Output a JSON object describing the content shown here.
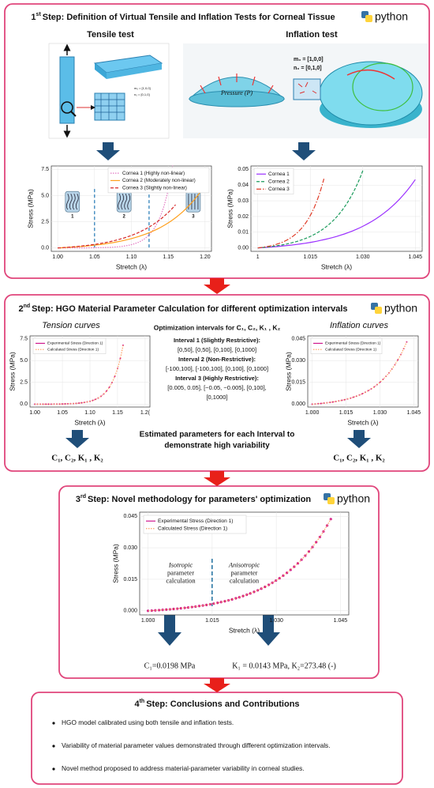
{
  "step1": {
    "num": "1",
    "sup": "st",
    "title": "Step: Definition of Virtual Tensile and Inflation Tests for Corneal Tissue",
    "logo_text": "python",
    "tensile_heading": "Tensile test",
    "inflation_heading": "Inflation test",
    "tensile_image_labels": [
      "m₀ = [1,0,0]",
      "n₀ = [0,1,0]"
    ],
    "inflation_image_labels": {
      "m0": "m₀ = [1,0,0]",
      "n0": "n₀ = [0,1,0]",
      "pressure": "Pressure (P)"
    },
    "tensile_chart": {
      "xlabel": "Stretch (λ)",
      "ylabel": "Stress (MPa)",
      "xticks": [
        "1.00",
        "1.05",
        "1.10",
        "1.15",
        "1.20"
      ],
      "yticks": [
        "0.0",
        "2.5",
        "5.0",
        "7.5"
      ],
      "fiber_labels": [
        "1",
        "2",
        "3"
      ],
      "series": [
        {
          "name": "Cornea 1 (Highly non-linear)",
          "color": "#e377c2",
          "dash": "1.5 1.5"
        },
        {
          "name": "Cornea 2 (Moderately non-linear)",
          "color": "#ff9f1c",
          "dash": ""
        },
        {
          "name": "Cornea 3 (Slightly non-linear)",
          "color": "#d62728",
          "dash": "4 2"
        }
      ]
    },
    "inflation_chart": {
      "xlabel": "Stretch (λ)",
      "ylabel": "Stress (MPa)",
      "xticks": [
        "1",
        "1.015",
        "1.030",
        "1.045"
      ],
      "yticks": [
        "0.00",
        "0.01",
        "0.02",
        "0.03",
        "0.04",
        "0.05"
      ],
      "series": [
        {
          "name": "Cornea 1",
          "color": "#9b30ff",
          "dash": ""
        },
        {
          "name": "Cornea 2",
          "color": "#1a9b5b",
          "dash": "4 2"
        },
        {
          "name": "Cornea 3",
          "color": "#e03c28",
          "dash": "6 2 1.5 2"
        }
      ]
    }
  },
  "step2": {
    "num": "2",
    "sup": "nd",
    "title": "Step: HGO Material Parameter Calculation for different optimization intervals",
    "logo_text": "python",
    "tension_heading": "Tension curves",
    "inflation_heading": "Inflation curves",
    "intervals_heading": "Optimization intervals for C₁, C₂, K₁ , K₂",
    "intervals": [
      {
        "name": "Interval 1 (Slightly Restrictive):",
        "lines": [
          "[0,50], [0,50], [0,100], [0,1000]"
        ]
      },
      {
        "name": "Interval 2 (Non-Restrictive):",
        "lines": [
          "[-100,100], [-100,100], [0,100], [0,1000]"
        ]
      },
      {
        "name": "Interval 3 (Highly Restrictive):",
        "lines": [
          "[0.005, 0.05], [−0.05, −0.005], [0,100],",
          "[0,1000]"
        ]
      }
    ],
    "tension_chart": {
      "xlabel": "Stretch (λ)",
      "ylabel": "Stress (MPa)",
      "xticks": [
        "1.00",
        "1.05",
        "1.10",
        "1.15",
        "1.2("
      ],
      "yticks": [
        "0.0",
        "2.5",
        "5.0",
        "7.5"
      ],
      "series": [
        {
          "name": "Experimental Stress (Direction 1)",
          "color": "#d0198f",
          "dash": ""
        },
        {
          "name": "Calculated Stress (Direction 1)",
          "color": "#ff9f60",
          "dash": "1.5 1.5"
        }
      ]
    },
    "inflation_chart": {
      "xlabel": "Stretch (λ)",
      "ylabel": "Stress (MPa)",
      "xticks": [
        "1.000",
        "1.015",
        "1.030",
        "1.045"
      ],
      "yticks": [
        "0.000",
        "0.015",
        "0.030",
        "0.045"
      ],
      "series": [
        {
          "name": "Experimental Stress (Direction 1)",
          "color": "#d0198f",
          "dash": ""
        },
        {
          "name": "Calculated Stress (Direction 1)",
          "color": "#ff9f60",
          "dash": "1.5 1.5"
        }
      ]
    },
    "estimated": [
      "Estimated parameters for each Interval to",
      "demonstrate high variability"
    ],
    "params_left": "C₁, C₂, K₁ , K₂",
    "params_right": "C₁, C₂, K₁ , K₂"
  },
  "step3": {
    "num": "3",
    "sup": "rd",
    "title": "Step: Novel methodology for parameters' optimization",
    "logo_text": "python",
    "chart": {
      "xlabel": "Stretch (λ)",
      "ylabel": "Stress (MPa)",
      "xticks": [
        "1.000",
        "1.015",
        "1.030",
        "1.045"
      ],
      "yticks": [
        "0.000",
        "0.015",
        "0.030",
        "0.045"
      ],
      "series": [
        {
          "name": "Experimental Stress (Direction 1)",
          "color": "#d0198f",
          "dash": ""
        },
        {
          "name": "Calculated Stress (Direction 1)",
          "color": "#ff9f60",
          "dash": "1.5 1.5"
        }
      ]
    },
    "isotropic": [
      "Isotropic",
      "parameter",
      "calculation"
    ],
    "anisotropic": [
      "Anisotropic",
      "parameter",
      "calculation"
    ],
    "result_left": "C₁=0.0198 MPa",
    "result_right": "K₁ = 0.0143 MPa, K₂=273.48 (-)"
  },
  "step4": {
    "num": "4",
    "sup": "th",
    "title": "Step: Conclusions and Contributions",
    "bullets": [
      "HGO model calibrated using both tensile and inflation tests.",
      "Variability of material parameter values demonstrated through different optimization intervals.",
      "Novel method proposed to address material-parameter variability in corneal studies."
    ]
  }
}
